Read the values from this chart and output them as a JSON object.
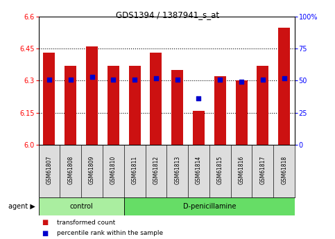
{
  "title": "GDS1394 / 1387941_s_at",
  "samples": [
    "GSM61807",
    "GSM61808",
    "GSM61809",
    "GSM61810",
    "GSM61811",
    "GSM61812",
    "GSM61813",
    "GSM61814",
    "GSM61815",
    "GSM61816",
    "GSM61817",
    "GSM61818"
  ],
  "red_values": [
    6.43,
    6.37,
    6.46,
    6.37,
    6.37,
    6.43,
    6.35,
    6.16,
    6.32,
    6.3,
    6.37,
    6.55
  ],
  "blue_values": [
    51,
    51,
    53,
    51,
    51,
    52,
    51,
    36,
    51,
    49,
    51,
    52
  ],
  "ylim_left": [
    6.0,
    6.6
  ],
  "ylim_right": [
    0,
    100
  ],
  "yticks_left": [
    6.0,
    6.15,
    6.3,
    6.45,
    6.6
  ],
  "yticks_right": [
    0,
    25,
    50,
    75,
    100
  ],
  "control_count": 4,
  "dpen_count": 8,
  "bar_color": "#cc1111",
  "dot_color": "#0000cc",
  "bg_color": "#ffffff",
  "control_color": "#aaeea0",
  "dpen_color": "#66dd66",
  "bar_width": 0.55,
  "base_value": 6.0
}
